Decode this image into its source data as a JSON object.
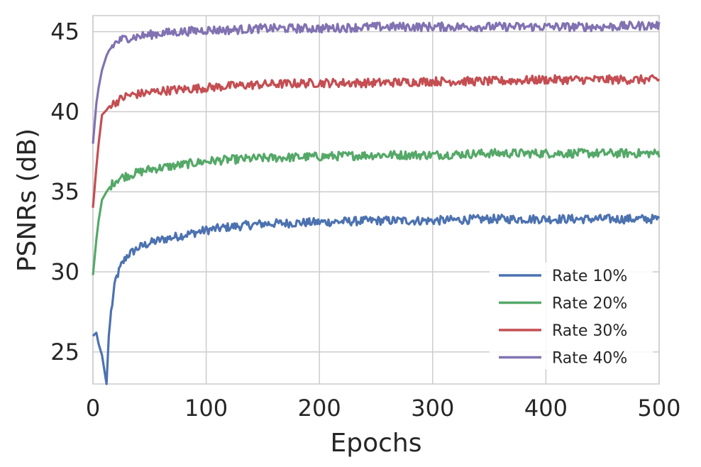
{
  "chart_data": {
    "type": "line",
    "title": "",
    "xlabel": "Epochs",
    "ylabel": "PSNRs (dB)",
    "xlim": [
      0,
      500
    ],
    "ylim": [
      23,
      46
    ],
    "xticks": [
      0,
      100,
      200,
      300,
      400,
      500
    ],
    "yticks": [
      25,
      30,
      35,
      40,
      45
    ],
    "grid": true,
    "legend_position": "bottom-right",
    "x": [
      0,
      3,
      5,
      8,
      12,
      14,
      16,
      20,
      25,
      30,
      40,
      50,
      60,
      80,
      100,
      120,
      150,
      200,
      250,
      300,
      350,
      400,
      450,
      500
    ],
    "series": [
      {
        "name": "Rate 10%",
        "color": "#4c72b0",
        "values": [
          26.0,
          26.2,
          25.5,
          24.8,
          23.0,
          26.0,
          27.5,
          29.5,
          30.4,
          31.0,
          31.5,
          31.8,
          32.0,
          32.3,
          32.6,
          32.8,
          33.0,
          33.1,
          33.2,
          33.2,
          33.3,
          33.3,
          33.3,
          33.3
        ]
      },
      {
        "name": "Rate 20%",
        "color": "#55a868",
        "values": [
          29.8,
          32.0,
          33.2,
          34.5,
          35.0,
          35.2,
          35.4,
          35.7,
          35.9,
          36.0,
          36.2,
          36.4,
          36.5,
          36.7,
          36.9,
          37.0,
          37.1,
          37.2,
          37.3,
          37.3,
          37.4,
          37.4,
          37.4,
          37.4
        ]
      },
      {
        "name": "Rate 30%",
        "color": "#c44e52",
        "values": [
          34.0,
          36.5,
          38.0,
          39.8,
          40.1,
          40.3,
          40.4,
          40.6,
          40.8,
          41.0,
          41.1,
          41.2,
          41.3,
          41.4,
          41.5,
          41.6,
          41.7,
          41.8,
          41.8,
          41.9,
          41.9,
          42.0,
          42.0,
          42.0
        ]
      },
      {
        "name": "Rate 40%",
        "color": "#8172b2",
        "values": [
          38.0,
          40.5,
          41.5,
          42.6,
          43.5,
          43.8,
          44.0,
          44.3,
          44.5,
          44.6,
          44.7,
          44.8,
          44.9,
          45.0,
          45.1,
          45.1,
          45.2,
          45.2,
          45.3,
          45.3,
          45.3,
          45.3,
          45.3,
          45.4
        ]
      }
    ]
  }
}
